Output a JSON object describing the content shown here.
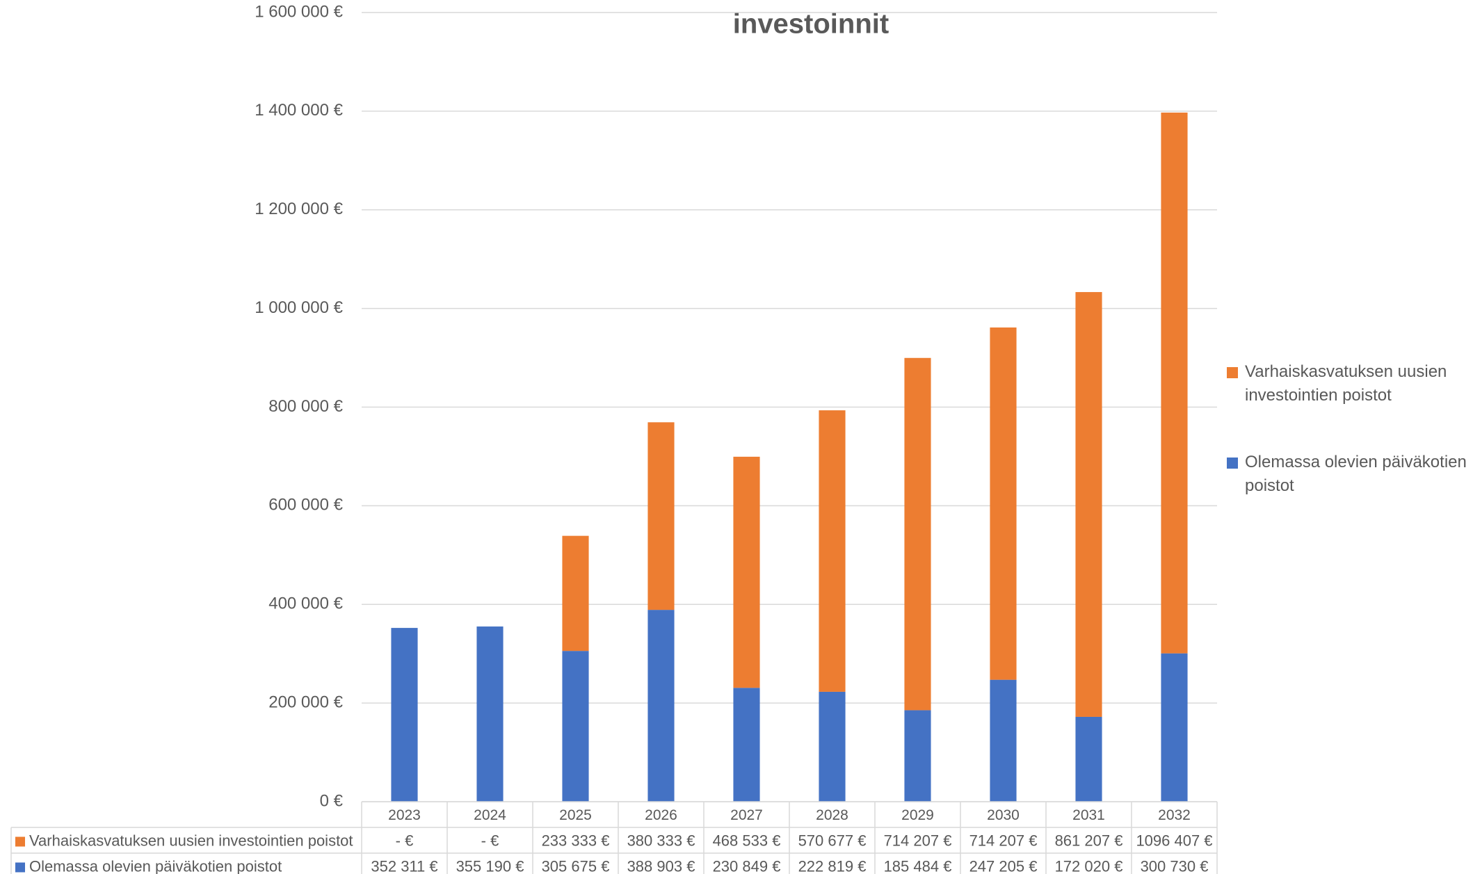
{
  "chart_data": {
    "type": "stacked_bar",
    "title": "investoinnit",
    "categories": [
      "2023",
      "2024",
      "2025",
      "2026",
      "2027",
      "2028",
      "2029",
      "2030",
      "2031",
      "2032"
    ],
    "series": [
      {
        "name": "Varhaiskasvatuksen uusien investointien poistot",
        "color": "#ed7d31",
        "values": [
          0,
          0,
          233333,
          380333,
          468533,
          570677,
          714207,
          714207,
          861207,
          1096407
        ],
        "value_labels": [
          "-  €",
          "-  €",
          "233 333 €",
          "380 333 €",
          "468 533 €",
          "570 677 €",
          "714 207 €",
          "714 207 €",
          "861 207 €",
          "1096 407 €"
        ]
      },
      {
        "name": "Olemassa olevien päiväkotien poistot",
        "color": "#4472c4",
        "values": [
          352311,
          355190,
          305675,
          388903,
          230849,
          222819,
          185484,
          247205,
          172020,
          300730
        ],
        "value_labels": [
          "352 311 €",
          "355 190 €",
          "305 675 €",
          "388 903 €",
          "230 849 €",
          "222 819 €",
          "185 484 €",
          "247 205 €",
          "172 020 €",
          "300 730 €"
        ]
      }
    ],
    "ylim": [
      0,
      1600000
    ],
    "yticks": [
      {
        "value": 0,
        "label": "0 €"
      },
      {
        "value": 200000,
        "label": "200 000 €"
      },
      {
        "value": 400000,
        "label": "400 000 €"
      },
      {
        "value": 600000,
        "label": "600 000 €"
      },
      {
        "value": 800000,
        "label": "800 000 €"
      },
      {
        "value": 1000000,
        "label": "1 000 000 €"
      },
      {
        "value": 1200000,
        "label": "1 200 000 €"
      },
      {
        "value": 1400000,
        "label": "1 400 000 €"
      },
      {
        "value": 1600000,
        "label": "1 600 000 €"
      }
    ],
    "grid": true,
    "legend": "right"
  }
}
